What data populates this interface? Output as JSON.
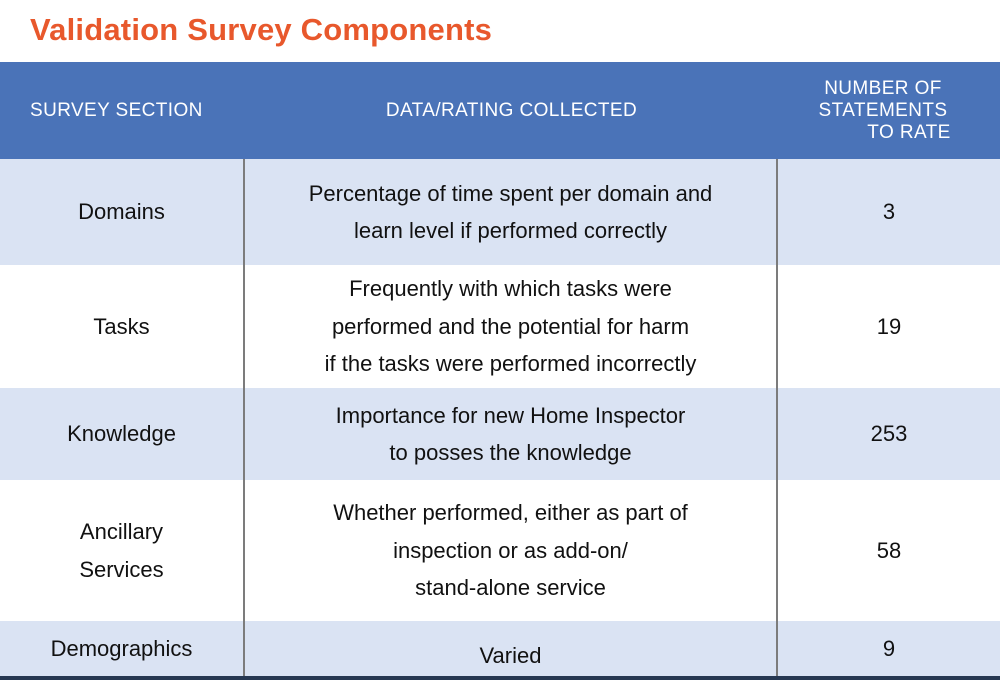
{
  "title": "Validation Survey Components",
  "colors": {
    "title_accent": "#e8582c",
    "header_bg": "#4a73b8",
    "row_alt_bg": "#dae3f3",
    "divider": "#7c7c7c",
    "bottom_bar": "#263852"
  },
  "table": {
    "columns": [
      {
        "label": "SURVEY SECTION"
      },
      {
        "label": "DATA/RATING COLLECTED"
      },
      {
        "label": "NUMBER OF STATEMENTS TO RATE",
        "lines": [
          "NUMBER OF",
          "STATEMENTS",
          "TO RATE"
        ]
      }
    ],
    "rows": [
      {
        "section": "Domains",
        "data": "Percentage of time spent per domain and\nlearn level if performed correctly",
        "count": "3"
      },
      {
        "section": "Tasks",
        "data": "Frequently with which tasks were\nperformed and the potential for harm\nif the tasks were performed incorrectly",
        "count": "19"
      },
      {
        "section": "Knowledge",
        "data": "Importance for new Home Inspector\nto posses the knowledge",
        "count": "253"
      },
      {
        "section": "Ancillary\nServices",
        "data": "Whether performed, either as part of\ninspection or as add-on/\nstand-alone service",
        "count": "58"
      },
      {
        "section": "Demographics",
        "data": "Varied",
        "count": "9"
      }
    ]
  }
}
